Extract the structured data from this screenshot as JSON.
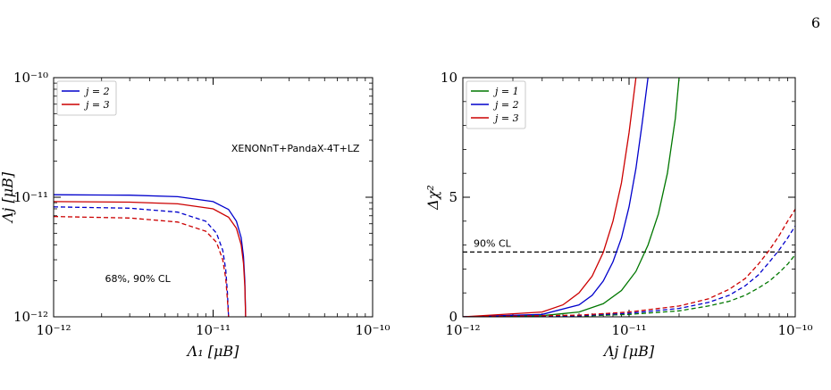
{
  "page": {
    "number": "6"
  },
  "chart_data": [
    {
      "type": "line",
      "xlabel": "Λ₁ [μB]",
      "ylabel": "Λj [μB]",
      "xscale": "log",
      "yscale": "log",
      "xlim": [
        1e-12,
        1e-10
      ],
      "ylim": [
        1e-12,
        1e-10
      ],
      "xticks": [
        {
          "v": 1e-12,
          "label": "10⁻¹²"
        },
        {
          "v": 1e-11,
          "label": "10⁻¹¹"
        },
        {
          "v": 1e-10,
          "label": "10⁻¹⁰"
        }
      ],
      "yticks": [
        {
          "v": 1e-12,
          "label": "10⁻¹²"
        },
        {
          "v": 1e-11,
          "label": "10⁻¹¹"
        },
        {
          "v": 1e-10,
          "label": "10⁻¹⁰"
        }
      ],
      "legend": {
        "location": "top-left",
        "entries": [
          {
            "label": "j = 2",
            "color": "#0000cc"
          },
          {
            "label": "j = 3",
            "color": "#cc0000"
          }
        ]
      },
      "annotations": [
        {
          "text": "XENONnT+PandaX-4T+LZ",
          "x": 1.3e-11,
          "y": 2.4e-11
        },
        {
          "text": "68%, 90% CL",
          "x": 2.1e-12,
          "y": 1.95e-12
        }
      ],
      "series": [
        {
          "legend": "j = 2",
          "cl": "90%",
          "color": "#0000cc",
          "dash": "solid",
          "x": [
            1e-12,
            3e-12,
            6e-12,
            1e-11,
            1.25e-11,
            1.4e-11,
            1.5e-11,
            1.55e-11,
            1.58e-11,
            1.6e-11
          ],
          "y": [
            1.05e-11,
            1.04e-11,
            1.01e-11,
            9.2e-12,
            7.9e-12,
            6.3e-12,
            4.6e-12,
            3.2e-12,
            2e-12,
            1e-12
          ]
        },
        {
          "legend": "j = 3",
          "cl": "90%",
          "color": "#cc0000",
          "dash": "solid",
          "x": [
            1e-12,
            3e-12,
            6e-12,
            1e-11,
            1.25e-11,
            1.4e-11,
            1.5e-11,
            1.55e-11,
            1.58e-11,
            1.6e-11
          ],
          "y": [
            9.2e-12,
            9.1e-12,
            8.8e-12,
            8e-12,
            6.8e-12,
            5.5e-12,
            4e-12,
            2.8e-12,
            1.8e-12,
            1e-12
          ]
        },
        {
          "legend": "j = 2",
          "cl": "68%",
          "color": "#0000cc",
          "dash": "dashed",
          "x": [
            1e-12,
            3e-12,
            6e-12,
            9e-12,
            1.05e-11,
            1.15e-11,
            1.2e-11,
            1.23e-11,
            1.25e-11
          ],
          "y": [
            8.3e-12,
            8.1e-12,
            7.5e-12,
            6.3e-12,
            5e-12,
            3.6e-12,
            2.5e-12,
            1.6e-12,
            1e-12
          ]
        },
        {
          "legend": "j = 3",
          "cl": "68%",
          "color": "#cc0000",
          "dash": "dashed",
          "x": [
            1e-12,
            3e-12,
            6e-12,
            9e-12,
            1.05e-11,
            1.15e-11,
            1.2e-11,
            1.23e-11,
            1.25e-11
          ],
          "y": [
            6.9e-12,
            6.7e-12,
            6.2e-12,
            5.2e-12,
            4.2e-12,
            3e-12,
            2.1e-12,
            1.4e-12,
            1e-12
          ]
        }
      ]
    },
    {
      "type": "line",
      "xlabel": "Λj [μB]",
      "ylabel": "Δχ²",
      "xscale": "log",
      "yscale": "linear",
      "xlim": [
        1e-12,
        1e-10
      ],
      "ylim": [
        0,
        10
      ],
      "xticks": [
        {
          "v": 1e-12,
          "label": "10⁻¹²"
        },
        {
          "v": 1e-11,
          "label": "10⁻¹¹"
        },
        {
          "v": 1e-10,
          "label": "10⁻¹⁰"
        }
      ],
      "yticks": [
        {
          "v": 0,
          "label": "0"
        },
        {
          "v": 5,
          "label": "5"
        },
        {
          "v": 10,
          "label": "10"
        }
      ],
      "legend": {
        "location": "top-left",
        "entries": [
          {
            "label": "j = 1",
            "color": "#007700"
          },
          {
            "label": "j = 2",
            "color": "#0000cc"
          },
          {
            "label": "j = 3",
            "color": "#cc0000"
          }
        ]
      },
      "reference_lines": [
        {
          "y": 2.71,
          "label": "90% CL",
          "style": "dashed",
          "color": "#000000"
        }
      ],
      "series": [
        {
          "legend": "j = 1",
          "color": "#007700",
          "dash": "solid",
          "x": [
            1e-12,
            3e-12,
            5e-12,
            7e-12,
            9e-12,
            1.1e-11,
            1.3e-11,
            1.5e-11,
            1.7e-11,
            1.9e-11,
            2e-11
          ],
          "y": [
            0,
            0.05,
            0.2,
            0.55,
            1.1,
            1.9,
            3.0,
            4.3,
            6.0,
            8.3,
            10
          ]
        },
        {
          "legend": "j = 2",
          "color": "#0000cc",
          "dash": "solid",
          "x": [
            1e-12,
            3e-12,
            5e-12,
            6e-12,
            7e-12,
            8e-12,
            9e-12,
            1e-11,
            1.1e-11,
            1.2e-11,
            1.3e-11
          ],
          "y": [
            0,
            0.1,
            0.5,
            0.9,
            1.5,
            2.3,
            3.3,
            4.6,
            6.2,
            8.1,
            10
          ]
        },
        {
          "legend": "j = 3",
          "color": "#cc0000",
          "dash": "solid",
          "x": [
            1e-12,
            3e-12,
            4e-12,
            5e-12,
            6e-12,
            7e-12,
            8e-12,
            9e-12,
            1e-11,
            1.1e-11
          ],
          "y": [
            0,
            0.2,
            0.5,
            1.0,
            1.7,
            2.7,
            4.0,
            5.6,
            7.7,
            10
          ]
        },
        {
          "legend": "j = 1",
          "color": "#007700",
          "dash": "dashed",
          "x": [
            1e-12,
            5e-12,
            1e-11,
            2e-11,
            3e-11,
            4e-11,
            5e-11,
            6e-11,
            7e-11,
            8e-11,
            9e-11,
            1e-10
          ],
          "y": [
            0,
            0.03,
            0.1,
            0.25,
            0.45,
            0.65,
            0.9,
            1.2,
            1.5,
            1.85,
            2.2,
            2.6
          ]
        },
        {
          "legend": "j = 2",
          "color": "#0000cc",
          "dash": "dashed",
          "x": [
            1e-12,
            5e-12,
            1e-11,
            2e-11,
            3e-11,
            4e-11,
            5e-11,
            6e-11,
            7e-11,
            8e-11,
            9e-11,
            1e-10
          ],
          "y": [
            0,
            0.05,
            0.15,
            0.35,
            0.6,
            0.9,
            1.3,
            1.75,
            2.3,
            2.8,
            3.3,
            3.8
          ]
        },
        {
          "legend": "j = 3",
          "color": "#cc0000",
          "dash": "dashed",
          "x": [
            1e-12,
            5e-12,
            1e-11,
            2e-11,
            3e-11,
            4e-11,
            5e-11,
            6e-11,
            7e-11,
            8e-11,
            9e-11,
            1e-10
          ],
          "y": [
            0,
            0.07,
            0.2,
            0.45,
            0.75,
            1.15,
            1.6,
            2.2,
            2.8,
            3.4,
            4.0,
            4.5
          ]
        }
      ]
    }
  ]
}
